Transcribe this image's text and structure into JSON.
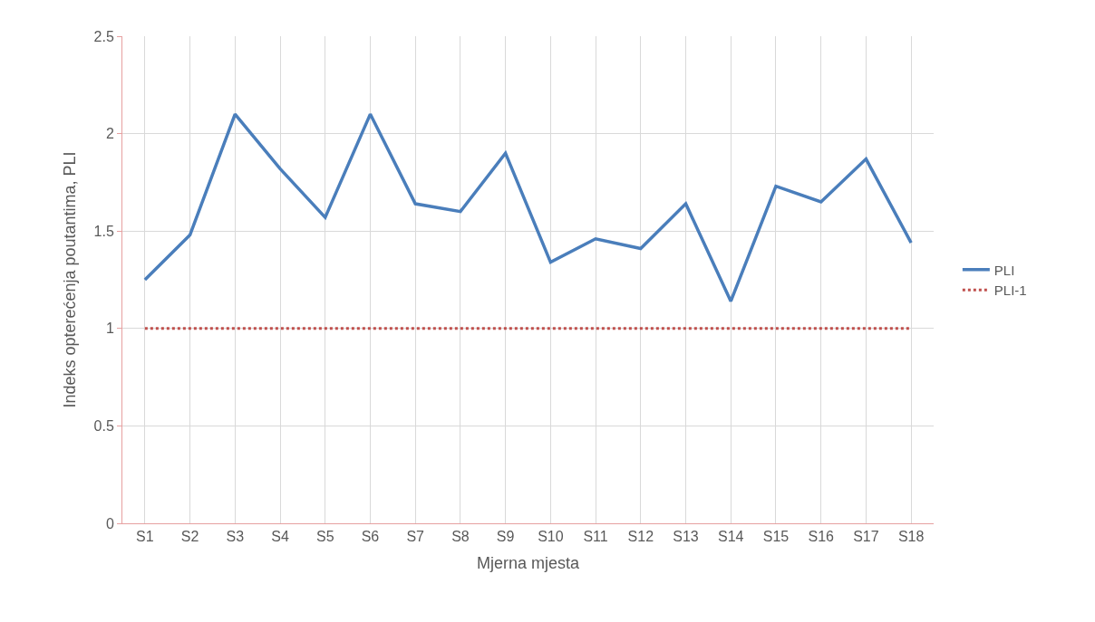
{
  "chart_data": {
    "type": "line",
    "xlabel": "Mjerna mjesta",
    "ylabel": "Indeks opterećenja poutantima, PLI",
    "categories": [
      "S1",
      "S2",
      "S3",
      "S4",
      "S5",
      "S6",
      "S7",
      "S8",
      "S9",
      "S10",
      "S11",
      "S12",
      "S13",
      "S14",
      "S15",
      "S16",
      "S17",
      "S18"
    ],
    "series": [
      {
        "name": "PLI",
        "color": "#4a7ebb",
        "line_style": "solid",
        "values": [
          1.25,
          1.48,
          2.1,
          1.82,
          1.57,
          2.1,
          1.64,
          1.6,
          1.9,
          1.34,
          1.46,
          1.41,
          1.64,
          1.14,
          1.73,
          1.65,
          1.87,
          1.44
        ]
      },
      {
        "name": "PLI-1",
        "color": "#c0504d",
        "line_style": "dotted",
        "values": [
          1,
          1,
          1,
          1,
          1,
          1,
          1,
          1,
          1,
          1,
          1,
          1,
          1,
          1,
          1,
          1,
          1,
          1
        ]
      }
    ],
    "ylim": [
      0,
      2.5
    ],
    "yticks": [
      0,
      0.5,
      1,
      1.5,
      2,
      2.5
    ],
    "grid": true,
    "legend": "right",
    "marker": "none"
  }
}
